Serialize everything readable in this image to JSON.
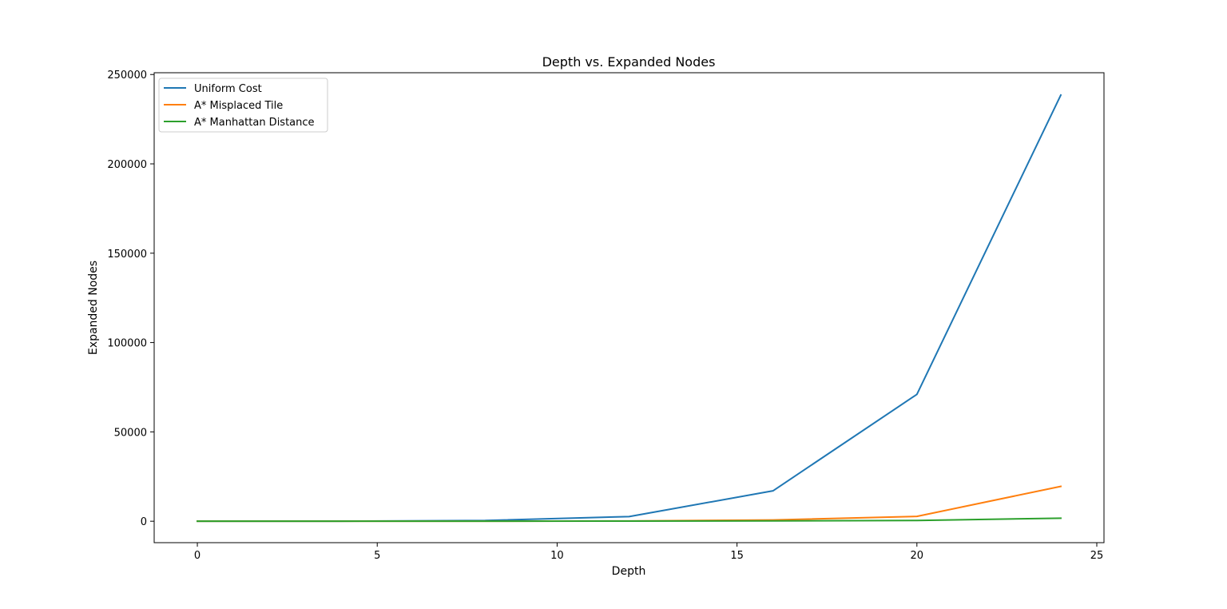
{
  "chart_data": {
    "type": "line",
    "title": "Depth vs. Expanded Nodes",
    "xlabel": "Depth",
    "ylabel": "Expanded Nodes",
    "x": [
      0,
      2,
      4,
      8,
      12,
      16,
      20,
      24
    ],
    "xlim": [
      -1.2,
      25.2
    ],
    "ylim": [
      -12000,
      251000
    ],
    "xticks": [
      0,
      5,
      10,
      15,
      20,
      25
    ],
    "yticks": [
      0,
      50000,
      100000,
      150000,
      200000,
      250000
    ],
    "grid": false,
    "legend_position": "top-left",
    "series": [
      {
        "name": "Uniform Cost",
        "color": "#1f77b4",
        "values": [
          1,
          5,
          30,
          400,
          2600,
          17000,
          71000,
          238500
        ]
      },
      {
        "name": "A* Misplaced Tile",
        "color": "#ff7f0e",
        "values": [
          1,
          3,
          5,
          20,
          150,
          700,
          2700,
          19500
        ]
      },
      {
        "name": "A* Manhattan Distance",
        "color": "#2ca02c",
        "values": [
          1,
          3,
          5,
          15,
          60,
          200,
          400,
          1700
        ]
      }
    ]
  }
}
